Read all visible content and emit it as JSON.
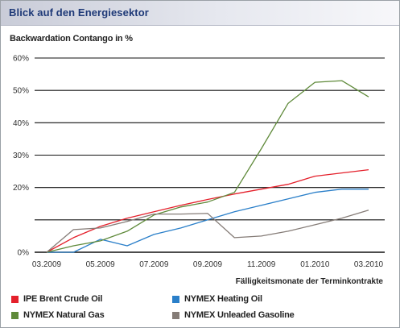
{
  "header": {
    "title": "Blick auf den Energiesektor"
  },
  "chart_data": {
    "type": "line",
    "title": "Backwardation Contango in %",
    "xlabel": "Fälligkeitsmonate der Terminkontrakte",
    "ylabel": "",
    "ylim": [
      0,
      60
    ],
    "y_ticks": [
      {
        "value": 0,
        "label": "0%"
      },
      {
        "value": 10,
        "label": ""
      },
      {
        "value": 20,
        "label": "20%"
      },
      {
        "value": 30,
        "label": "30%"
      },
      {
        "value": 40,
        "label": "40%"
      },
      {
        "value": 50,
        "label": "50%"
      },
      {
        "value": 60,
        "label": "60%"
      }
    ],
    "categories": [
      "03.2009",
      "04.2009",
      "05.2009",
      "06.2009",
      "07.2009",
      "08.2009",
      "09.2009",
      "10.2009",
      "11.2009",
      "12.2009",
      "01.2010",
      "02.2010",
      "03.2010"
    ],
    "x_tick_labels": [
      "03.2009",
      "",
      "05.2009",
      "",
      "07.2009",
      "",
      "09.2009",
      "",
      "11.2009",
      "",
      "01.2010",
      "",
      "03.2010"
    ],
    "grid": true,
    "legend_position": "bottom",
    "series": [
      {
        "name": "IPE Brent Crude Oil",
        "color": "#e4202b",
        "values": [
          0,
          4.5,
          8,
          10.5,
          12.5,
          14.5,
          16.3,
          18,
          19.5,
          21,
          23.5,
          24.5,
          25.5
        ]
      },
      {
        "name": "NYMEX Heating Oil",
        "color": "#2a7fc9",
        "values": [
          0,
          0,
          4,
          2,
          5.5,
          7.5,
          10,
          12.5,
          14.5,
          16.5,
          18.5,
          19.5,
          19.5
        ]
      },
      {
        "name": "NYMEX Natural Gas",
        "color": "#5f8a3a",
        "values": [
          0,
          2,
          3.5,
          6.5,
          11.5,
          14,
          15.5,
          18.5,
          32,
          46,
          52.5,
          53,
          48
        ]
      },
      {
        "name": "NYMEX Unleaded Gasoline",
        "color": "#857c77",
        "values": [
          0,
          7,
          7.5,
          9.5,
          11.8,
          11.8,
          12,
          4.5,
          5,
          6.5,
          8.5,
          10.5,
          13
        ]
      }
    ]
  }
}
